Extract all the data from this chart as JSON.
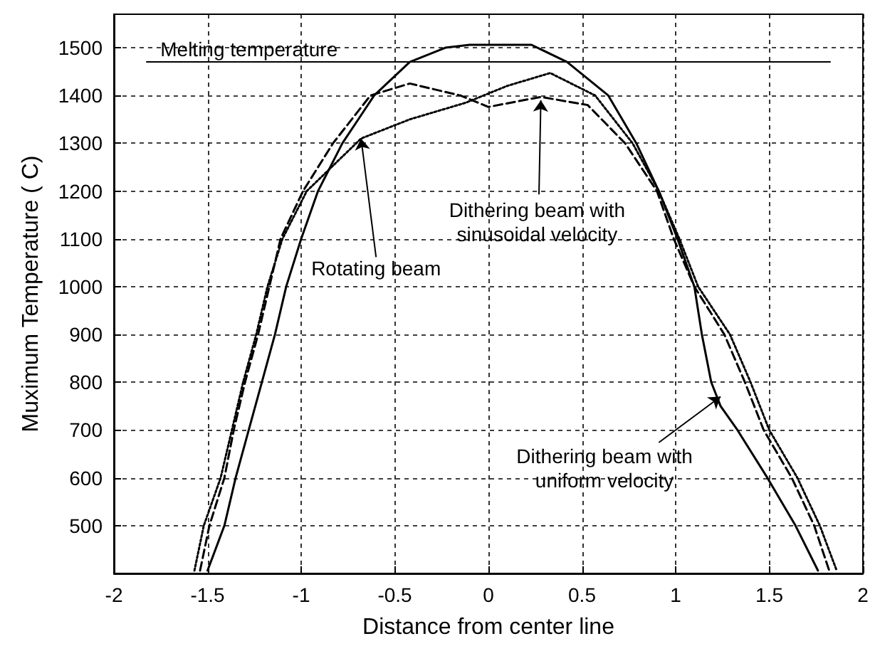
{
  "chart_data": {
    "type": "line",
    "xlabel": "Distance from center line",
    "ylabel": "Muximum Temperature ( C)",
    "xlim": [
      -2,
      2
    ],
    "xticks": [
      -2,
      -1.5,
      -1,
      -0.5,
      0,
      0.5,
      1,
      1.5,
      2
    ],
    "ylim": [
      400,
      1570
    ],
    "yticks": [
      500,
      600,
      700,
      800,
      900,
      1000,
      1100,
      1200,
      1300,
      1400,
      1500
    ],
    "grid": true,
    "marker": "none",
    "series": [
      {
        "color": "#000000",
        "line_style": "solid",
        "x": [
          -1.5,
          -1.41,
          -1.35,
          -1.28,
          -1.21,
          -1.14,
          -1.08,
          -1.0,
          -0.91,
          -0.78,
          -0.61,
          -0.42,
          -0.23,
          -0.1,
          0.23,
          0.42,
          0.64,
          0.79,
          0.91,
          1.01,
          1.1,
          1.14,
          1.19,
          1.24,
          1.33,
          1.49,
          1.64,
          1.76
        ],
        "values": [
          406,
          500,
          600,
          700,
          800,
          900,
          1000,
          1100,
          1200,
          1300,
          1400,
          1470,
          1500,
          1506,
          1506,
          1470,
          1400,
          1300,
          1200,
          1100,
          1000,
          900,
          800,
          750,
          700,
          600,
          500,
          406
        ]
      },
      {
        "color": "#000000",
        "line_style": "dashed",
        "x": [
          -1.54,
          -1.49,
          -1.41,
          -1.36,
          -1.3,
          -1.23,
          -1.17,
          -1.11,
          -0.99,
          -0.83,
          -0.63,
          -0.42,
          -0.15,
          0.0,
          0.28,
          0.53,
          0.73,
          0.9,
          0.99,
          1.1,
          1.18,
          1.26,
          1.37,
          1.47,
          1.62,
          1.74,
          1.82
        ],
        "values": [
          406,
          500,
          600,
          700,
          800,
          900,
          1000,
          1100,
          1200,
          1300,
          1400,
          1425,
          1400,
          1376,
          1397,
          1380,
          1300,
          1200,
          1100,
          1000,
          950,
          900,
          800,
          700,
          600,
          500,
          406
        ]
      },
      {
        "color": "#000000",
        "line_style": "dotted",
        "x": [
          -1.57,
          -1.52,
          -1.43,
          -1.37,
          -1.31,
          -1.24,
          -1.18,
          -1.1,
          -0.97,
          -0.68,
          -0.42,
          -0.12,
          0.1,
          0.33,
          0.57,
          0.77,
          0.91,
          1.02,
          1.12,
          1.29,
          1.4,
          1.5,
          1.65,
          1.77,
          1.86
        ],
        "values": [
          406,
          500,
          600,
          700,
          800,
          900,
          1000,
          1100,
          1200,
          1310,
          1350,
          1385,
          1420,
          1447,
          1400,
          1300,
          1200,
          1100,
          1000,
          900,
          800,
          700,
          600,
          500,
          406
        ]
      }
    ],
    "ref_lines": [
      {
        "axis": "y",
        "value": 1470,
        "label": "Melting temperature",
        "color": "#000000"
      }
    ],
    "annotations": [
      {
        "text": "Rotating beam",
        "x": -0.68,
        "y": 1310
      },
      {
        "text": "Dithering beam with\nsinusoidal velocity",
        "x": 0.28,
        "y": 1390
      },
      {
        "text": "Dithering beam with\nuniform velocity",
        "x": 1.24,
        "y": 770
      }
    ]
  }
}
